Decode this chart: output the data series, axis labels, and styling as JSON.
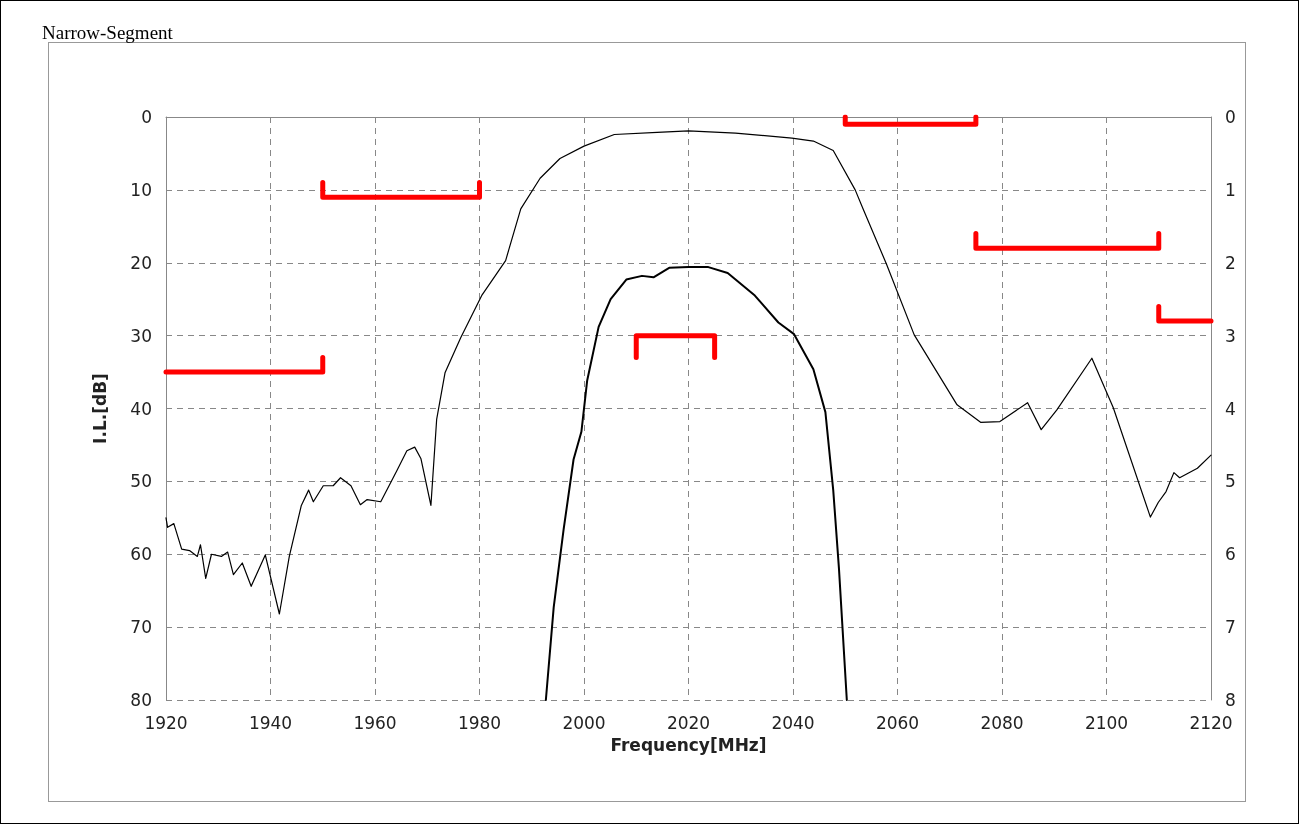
{
  "chart_data": {
    "type": "line",
    "title": "Narrow-Segment",
    "xlabel": "Frequency[MHz]",
    "ylabel": "I.L.[dB]",
    "xlim": [
      1920,
      2120
    ],
    "xticks": [
      1920,
      1940,
      1960,
      1980,
      2000,
      2020,
      2040,
      2060,
      2080,
      2100,
      2120
    ],
    "ylim": [
      80,
      0
    ],
    "yticks": [
      0,
      10,
      20,
      30,
      40,
      50,
      60,
      70,
      80
    ],
    "y2lim": [
      8,
      0
    ],
    "y2ticks": [
      0,
      1,
      2,
      3,
      4,
      5,
      6,
      7,
      8
    ],
    "grid": true,
    "marker": "none",
    "line_style": "solid",
    "series": [
      {
        "color": "#000000",
        "x": [
          1920,
          1920.3,
          1921.5,
          1923,
          1924.5,
          1926,
          1926.6,
          1927.6,
          1928.7,
          1930.6,
          1931.8,
          1932.9,
          1934.6,
          1936.3,
          1939,
          1941.7,
          1943.6,
          1945.9,
          1947.3,
          1948.2,
          1950.1,
          1952,
          1953.4,
          1955.4,
          1957.2,
          1958.5,
          1961.1,
          1964.2,
          1966.1,
          1967.6,
          1968.8,
          1970.7,
          1971.8,
          1973.4,
          1976.4,
          1980.5,
          1985,
          1987.9,
          1991.6,
          1995.4,
          2000,
          2005.8,
          2014,
          2020,
          2029,
          2039.8,
          2043.9,
          2047.7,
          2051.9,
          2053.4,
          2057.9,
          2063.2,
          2071.4,
          2075.9,
          2079.6,
          2084.9,
          2087.5,
          2090.5,
          2097.2,
          2101.3,
          2108.4,
          2109.9,
          2111.4,
          2112.9,
          2114,
          2117.4,
          2120
        ],
        "values": [
          55.0,
          56.3,
          55.8,
          59.3,
          59.5,
          60.3,
          58.7,
          63.3,
          60,
          60.3,
          59.7,
          62.8,
          61.2,
          64.4,
          60.1,
          68.2,
          60.3,
          53.3,
          51.2,
          52.8,
          50.6,
          50.6,
          49.5,
          50.6,
          53.2,
          52.5,
          52.8,
          48.5,
          45.8,
          45.3,
          46.9,
          53.3,
          41.5,
          35.1,
          30.3,
          24.4,
          19.7,
          12.6,
          8.4,
          5.7,
          4,
          2.4,
          2.1,
          1.9,
          2.2,
          2.9,
          3.3,
          4.6,
          10,
          12.6,
          20.2,
          29.9,
          39.5,
          41.9,
          41.8,
          39.2,
          42.9,
          40.2,
          33.1,
          39.9,
          54.9,
          52.9,
          51.4,
          48.8,
          49.5,
          48.2,
          46.4
        ]
      },
      {
        "color": "#000000",
        "axis": "y2",
        "x": [
          1992.7,
          1994.2,
          1996.1,
          1998,
          1999.5,
          2000.6,
          2002.8,
          2005.1,
          2008.1,
          2011.1,
          2013.3,
          2016.3,
          2020,
          2023.8,
          2027.5,
          2032.7,
          2037.2,
          2040.2,
          2043.9,
          2046.2,
          2047.7,
          2048.8,
          2050.3
        ],
        "values": [
          8.0,
          6.73,
          5.66,
          4.7,
          4.32,
          3.62,
          2.88,
          2.5,
          2.23,
          2.18,
          2.2,
          2.07,
          2.06,
          2.06,
          2.14,
          2.45,
          2.82,
          2.98,
          3.46,
          4.05,
          5.12,
          6.2,
          8.0
        ]
      },
      {
        "color": "#ff0000",
        "x": [
          1920,
          1950,
          1950
        ],
        "values": [
          35,
          35,
          33
        ]
      },
      {
        "color": "#ff0000",
        "x": [
          1950,
          1950,
          1980,
          1980
        ],
        "values": [
          9,
          11,
          11,
          9
        ]
      },
      {
        "color": "#ff0000",
        "axis": "y2",
        "x": [
          2010,
          2010,
          2025,
          2025
        ],
        "values": [
          3.3,
          3.0,
          3.0,
          3.3
        ]
      },
      {
        "color": "#ff0000",
        "x": [
          2050,
          2050,
          2075,
          2075
        ],
        "values": [
          0,
          1,
          1,
          0
        ]
      },
      {
        "color": "#ff0000",
        "x": [
          2075,
          2075,
          2110,
          2110
        ],
        "values": [
          16,
          18,
          18,
          16
        ]
      },
      {
        "color": "#ff0000",
        "x": [
          2110,
          2110,
          2120
        ],
        "values": [
          26,
          28,
          28
        ]
      }
    ]
  }
}
